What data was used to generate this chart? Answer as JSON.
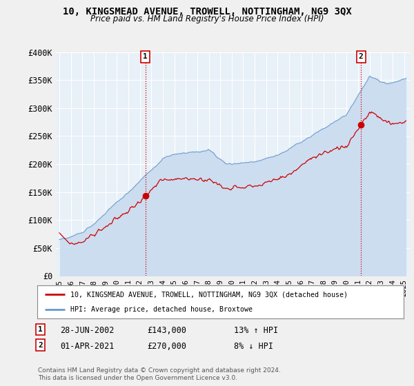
{
  "title": "10, KINGSMEAD AVENUE, TROWELL, NOTTINGHAM, NG9 3QX",
  "subtitle": "Price paid vs. HM Land Registry's House Price Index (HPI)",
  "ylabel_ticks": [
    "£0",
    "£50K",
    "£100K",
    "£150K",
    "£200K",
    "£250K",
    "£300K",
    "£350K",
    "£400K"
  ],
  "ytick_values": [
    0,
    50000,
    100000,
    150000,
    200000,
    250000,
    300000,
    350000,
    400000
  ],
  "ylim": [
    0,
    400000
  ],
  "xlim_start": 1994.7,
  "xlim_end": 2025.5,
  "sale1_x": 2002.49,
  "sale1_y": 143000,
  "sale2_x": 2021.25,
  "sale2_y": 270000,
  "legend_line1": "10, KINGSMEAD AVENUE, TROWELL, NOTTINGHAM, NG9 3QX (detached house)",
  "legend_line2": "HPI: Average price, detached house, Broxtowe",
  "table_row1": [
    "1",
    "28-JUN-2002",
    "£143,000",
    "13% ↑ HPI"
  ],
  "table_row2": [
    "2",
    "01-APR-2021",
    "£270,000",
    "8% ↓ HPI"
  ],
  "footer": "Contains HM Land Registry data © Crown copyright and database right 2024.\nThis data is licensed under the Open Government Licence v3.0.",
  "hpi_color": "#6699cc",
  "hpi_fill_color": "#ccddf0",
  "price_color": "#cc0000",
  "bg_color": "#f0f0f0",
  "plot_bg_color": "#e8f0f8",
  "grid_color": "#ffffff"
}
